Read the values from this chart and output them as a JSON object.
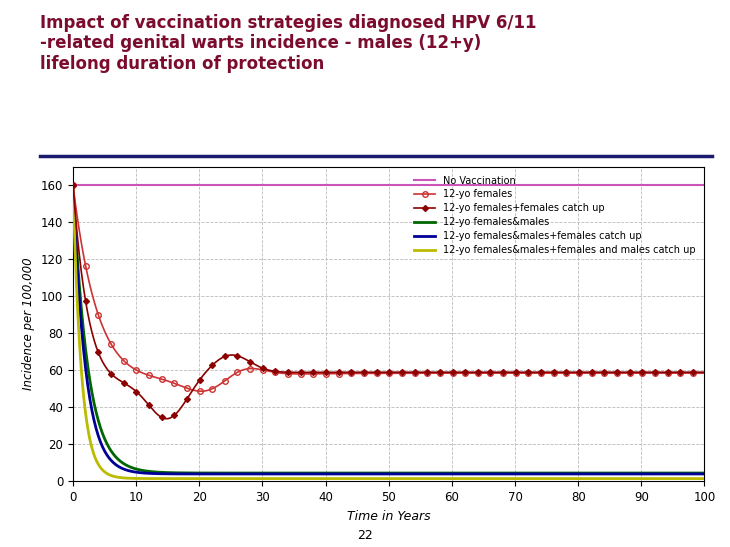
{
  "title_line1": "Impact of vaccination strategies diagnosed HPV 6/11",
  "title_line2": "-related genital warts incidence - males (12+y)",
  "title_line3": "lifelong duration of protection",
  "title_color": "#7B0C2E",
  "title_fontsize": 12,
  "xlabel": "Time in Years",
  "ylabel": "Incidence per 100,000",
  "xlim": [
    0,
    100
  ],
  "ylim": [
    0,
    170
  ],
  "yticks": [
    0,
    20,
    40,
    60,
    80,
    100,
    120,
    140,
    160
  ],
  "xticks": [
    0,
    10,
    20,
    30,
    40,
    50,
    60,
    70,
    80,
    90,
    100
  ],
  "grid_color": "#bbbbbb",
  "separator_color": "#1a1a6e",
  "background_color": "#ffffff",
  "no_vaccination_color": "#cc55bb",
  "no_vaccination_value": 160,
  "series": [
    {
      "label": "12-yo females",
      "color": "#cc3333",
      "marker": "o",
      "linewidth": 1.2,
      "markersize": 4
    },
    {
      "label": "12-yo females+females catch up",
      "color": "#8B0000",
      "marker": "D",
      "linewidth": 1.2,
      "markersize": 3
    },
    {
      "label": "12-yo females&males",
      "color": "#006600",
      "marker": "None",
      "linewidth": 2.0,
      "markersize": 0
    },
    {
      "label": "12-yo females&males+females catch up",
      "color": "#000099",
      "marker": "None",
      "linewidth": 2.0,
      "markersize": 0
    },
    {
      "label": "12-yo females&males+females and males catch up",
      "color": "#bbbb00",
      "marker": "None",
      "linewidth": 2.0,
      "markersize": 0
    }
  ],
  "page_number": "22"
}
